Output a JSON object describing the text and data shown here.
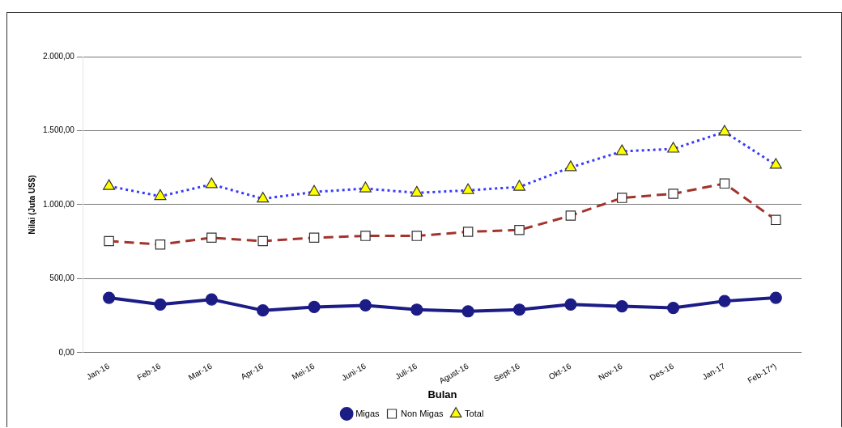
{
  "chart_data": {
    "type": "line",
    "xlabel": "Bulan",
    "ylabel": "Nilai (Juta US$)",
    "categories": [
      "Jan-16",
      "Feb-16",
      "Mar-16",
      "Apr-16",
      "Mei-16",
      "Juni-16",
      "Juli-16",
      "Agust-16",
      "Sept-16",
      "Okt-16",
      "Nov-16",
      "Des-16",
      "Jan-17",
      "Feb-17*)"
    ],
    "series": [
      {
        "name": "Migas",
        "color": "#1c1c86",
        "marker": "circle",
        "line_style": "solid",
        "values": [
          371,
          326,
          360,
          286,
          309,
          320,
          291,
          280,
          291,
          326,
          314,
          303,
          349,
          371
        ]
      },
      {
        "name": "Non Migas",
        "color": "#a3332c",
        "marker": "square",
        "line_style": "dashed",
        "values": [
          754,
          731,
          777,
          754,
          777,
          789,
          789,
          817,
          829,
          926,
          1046,
          1074,
          1143,
          897
        ]
      },
      {
        "name": "Total",
        "color": "#3a3aff",
        "marker": "triangle",
        "line_style": "dotted",
        "values": [
          1125,
          1057,
          1137,
          1040,
          1086,
          1109,
          1080,
          1097,
          1120,
          1252,
          1360,
          1377,
          1492,
          1268
        ]
      }
    ],
    "ylim": [
      0,
      2000
    ],
    "yticks": [
      {
        "value": 0,
        "label": "0,00"
      },
      {
        "value": 500,
        "label": "500,00"
      },
      {
        "value": 1000,
        "label": "1.000,00"
      },
      {
        "value": 1500,
        "label": "1.500,00"
      },
      {
        "value": 2000,
        "label": "2.000,00"
      }
    ],
    "grid": "y",
    "legend": "bottom"
  }
}
